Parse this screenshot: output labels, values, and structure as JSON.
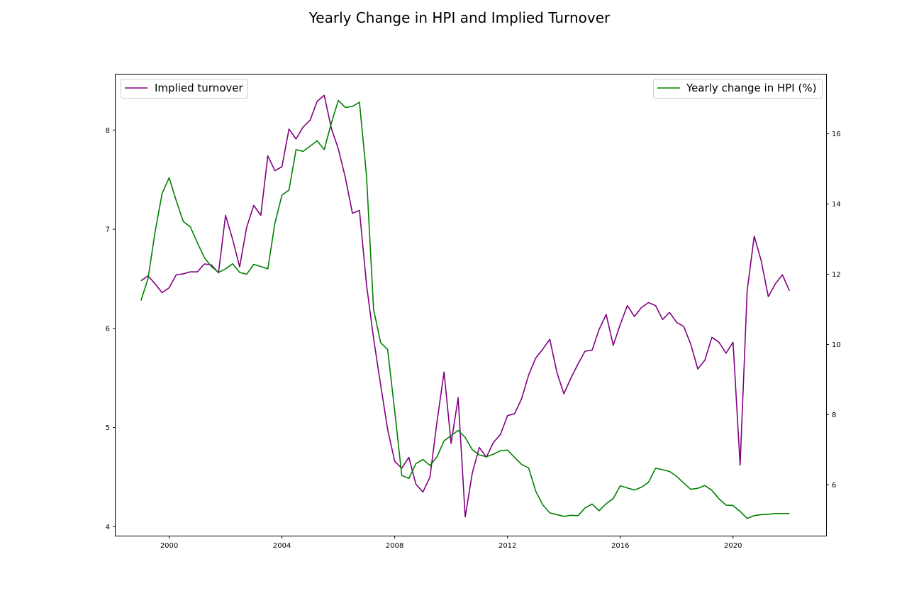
{
  "chart_data": {
    "type": "line",
    "title": "Yearly Change in HPI and Implied Turnover",
    "xlabel": "",
    "x_ticks": [
      "2000",
      "2004",
      "2008",
      "2012",
      "2016",
      "2020"
    ],
    "xlim": [
      1998.1,
      2023.3
    ],
    "left_axis": {
      "ylabel": "",
      "ylim": [
        3.91,
        8.56
      ],
      "ticks": [
        "4",
        "5",
        "6",
        "7",
        "8"
      ]
    },
    "right_axis": {
      "ylabel": "",
      "ylim": [
        4.55,
        17.69
      ],
      "ticks": [
        "6",
        "8",
        "10",
        "12",
        "14",
        "16"
      ]
    },
    "grid": false,
    "series": [
      {
        "name": "Implied turnover",
        "axis": "left",
        "color": "#800080",
        "legend_loc": "upper left",
        "x": [
          1999.0,
          1999.25,
          1999.5,
          1999.75,
          2000.0,
          2000.25,
          2000.5,
          2000.75,
          2001.0,
          2001.25,
          2001.5,
          2001.75,
          2002.0,
          2002.25,
          2002.5,
          2002.75,
          2003.0,
          2003.25,
          2003.5,
          2003.75,
          2004.0,
          2004.25,
          2004.5,
          2004.75,
          2005.0,
          2005.25,
          2005.5,
          2005.75,
          2006.0,
          2006.25,
          2006.5,
          2006.75,
          2007.0,
          2007.25,
          2007.5,
          2007.75,
          2008.0,
          2008.25,
          2008.5,
          2008.75,
          2009.0,
          2009.25,
          2009.5,
          2009.75,
          2010.0,
          2010.25,
          2010.5,
          2010.75,
          2011.0,
          2011.25,
          2011.5,
          2011.75,
          2012.0,
          2012.25,
          2012.5,
          2012.75,
          2013.0,
          2013.25,
          2013.5,
          2013.75,
          2014.0,
          2014.25,
          2014.5,
          2014.75,
          2015.0,
          2015.25,
          2015.5,
          2015.75,
          2016.0,
          2016.25,
          2016.5,
          2016.75,
          2017.0,
          2017.25,
          2017.5,
          2017.75,
          2018.0,
          2018.25,
          2018.5,
          2018.75,
          2019.0,
          2019.25,
          2019.5,
          2019.75,
          2020.0,
          2020.25,
          2020.5,
          2020.75,
          2021.0,
          2021.25,
          2021.5,
          2021.75,
          2022.0
        ],
        "values": [
          6.48,
          6.53,
          6.45,
          6.36,
          6.41,
          6.54,
          6.55,
          6.57,
          6.57,
          6.65,
          6.64,
          6.56,
          7.14,
          6.9,
          6.62,
          7.02,
          7.24,
          7.14,
          7.74,
          7.59,
          7.63,
          8.01,
          7.91,
          8.03,
          8.1,
          8.29,
          8.35,
          8.02,
          7.81,
          7.52,
          7.16,
          7.19,
          6.44,
          5.9,
          5.43,
          4.98,
          4.66,
          4.59,
          4.7,
          4.43,
          4.35,
          4.5,
          5.06,
          5.56,
          4.84,
          5.3,
          4.1,
          4.54,
          4.8,
          4.7,
          4.85,
          4.93,
          5.12,
          5.14,
          5.29,
          5.53,
          5.7,
          5.79,
          5.89,
          5.56,
          5.34,
          5.5,
          5.64,
          5.77,
          5.78,
          5.99,
          6.14,
          5.83,
          6.04,
          6.23,
          6.12,
          6.21,
          6.26,
          6.23,
          6.09,
          6.16,
          6.06,
          6.02,
          5.84,
          5.59,
          5.68,
          5.91,
          5.86,
          5.75,
          5.86,
          4.62,
          6.38,
          6.93,
          6.68,
          6.32,
          6.45,
          6.54,
          6.38
        ]
      },
      {
        "name": "Yearly change in HPI (%)",
        "axis": "right",
        "color": "#008000",
        "legend_loc": "upper right",
        "x": [
          1999.0,
          1999.25,
          1999.5,
          1999.75,
          2000.0,
          2000.25,
          2000.5,
          2000.75,
          2001.0,
          2001.25,
          2001.5,
          2001.75,
          2002.0,
          2002.25,
          2002.5,
          2002.75,
          2003.0,
          2003.25,
          2003.5,
          2003.75,
          2004.0,
          2004.25,
          2004.5,
          2004.75,
          2005.0,
          2005.25,
          2005.5,
          2005.75,
          2006.0,
          2006.25,
          2006.5,
          2006.75,
          2007.0,
          2007.25,
          2007.5,
          2007.75,
          2008.0,
          2008.25,
          2008.5,
          2008.75,
          2009.0,
          2009.25,
          2009.5,
          2009.75,
          2010.0,
          2010.25,
          2010.5,
          2010.75,
          2011.0,
          2011.25,
          2011.5,
          2011.75,
          2012.0,
          2012.25,
          2012.5,
          2012.75,
          2013.0,
          2013.25,
          2013.5,
          2013.75,
          2014.0,
          2014.25,
          2014.5,
          2014.75,
          2015.0,
          2015.25,
          2015.5,
          2015.75,
          2016.0,
          2016.25,
          2016.5,
          2016.75,
          2017.0,
          2017.25,
          2017.5,
          2017.75,
          2018.0,
          2018.25,
          2018.5,
          2018.75,
          2019.0,
          2019.25,
          2019.5,
          2019.75,
          2020.0,
          2020.25,
          2020.5,
          2020.75,
          2021.0,
          2021.25,
          2021.5,
          2021.75,
          2022.0
        ],
        "values": [
          11.25,
          11.87,
          13.2,
          14.3,
          14.75,
          14.1,
          13.5,
          13.35,
          12.9,
          12.47,
          12.22,
          12.05,
          12.15,
          12.3,
          12.05,
          12.0,
          12.28,
          12.22,
          12.15,
          13.45,
          14.25,
          14.4,
          15.55,
          15.5,
          15.65,
          15.8,
          15.55,
          16.3,
          16.95,
          16.75,
          16.78,
          16.9,
          14.8,
          11.0,
          10.05,
          9.85,
          8.1,
          6.27,
          6.18,
          6.6,
          6.72,
          6.55,
          6.8,
          7.25,
          7.4,
          7.55,
          7.35,
          7.0,
          6.85,
          6.8,
          6.87,
          6.97,
          6.99,
          6.78,
          6.58,
          6.48,
          5.82,
          5.43,
          5.2,
          5.15,
          5.1,
          5.13,
          5.12,
          5.34,
          5.45,
          5.26,
          5.46,
          5.61,
          5.97,
          5.91,
          5.85,
          5.93,
          6.07,
          6.47,
          6.43,
          6.38,
          6.24,
          6.05,
          5.87,
          5.9,
          5.98,
          5.84,
          5.6,
          5.42,
          5.41,
          5.24,
          5.04,
          5.12,
          5.15,
          5.16,
          5.18,
          5.18,
          5.18
        ]
      }
    ]
  }
}
